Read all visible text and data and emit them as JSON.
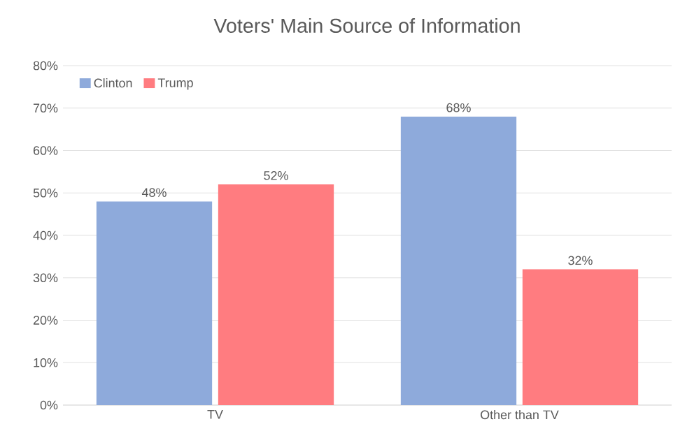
{
  "chart_data": {
    "type": "bar",
    "title": "Voters' Main Source of Information",
    "categories": [
      "TV",
      "Other than TV"
    ],
    "series": [
      {
        "name": "Clinton",
        "color": "#8eaadb",
        "values": [
          48,
          68
        ],
        "value_labels": [
          "48%",
          "68%"
        ]
      },
      {
        "name": "Trump",
        "color": "#ff7c80",
        "values": [
          52,
          32
        ],
        "value_labels": [
          "52%",
          "32%"
        ]
      }
    ],
    "ylim": [
      0,
      80
    ],
    "yticks": [
      {
        "value": 0,
        "label": "0%"
      },
      {
        "value": 10,
        "label": "10%"
      },
      {
        "value": 20,
        "label": "20%"
      },
      {
        "value": 30,
        "label": "30%"
      },
      {
        "value": 40,
        "label": "40%"
      },
      {
        "value": 50,
        "label": "50%"
      },
      {
        "value": 60,
        "label": "60%"
      },
      {
        "value": 70,
        "label": "70%"
      },
      {
        "value": 80,
        "label": "80%"
      }
    ],
    "grid": "y",
    "legend": "top left"
  }
}
